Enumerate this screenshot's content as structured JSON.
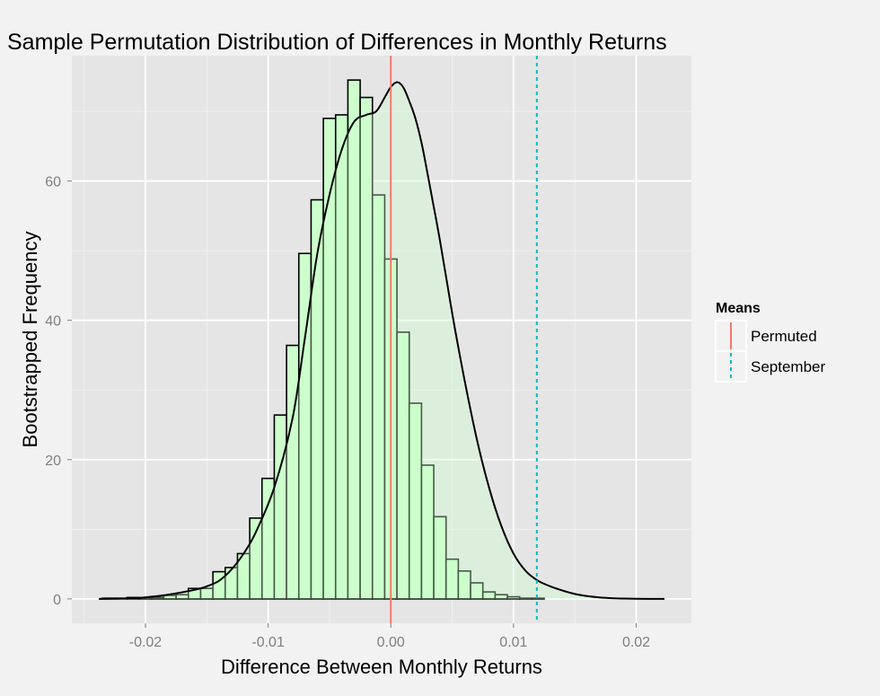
{
  "chart_data": {
    "type": "bar",
    "title": "Sample Permutation Distribution of Differences in Monthly Returns",
    "xlabel": "Difference Between Monthly Returns",
    "ylabel": "Bootstrapped Frequency",
    "xlim": [
      -0.026,
      0.0245
    ],
    "ylim": [
      -3.5,
      78
    ],
    "x_ticks": [
      {
        "value": -0.02,
        "label": "-0.02"
      },
      {
        "value": -0.01,
        "label": "-0.01"
      },
      {
        "value": 0.0,
        "label": "0.00"
      },
      {
        "value": 0.01,
        "label": "0.01"
      },
      {
        "value": 0.02,
        "label": "0.02"
      }
    ],
    "y_ticks": [
      {
        "value": 0,
        "label": "0"
      },
      {
        "value": 20,
        "label": "20"
      },
      {
        "value": 40,
        "label": "40"
      },
      {
        "value": 60,
        "label": "60"
      }
    ],
    "grid": true,
    "histogram": {
      "bin_width": 0.001,
      "bins": [
        {
          "x0": -0.0235,
          "x1": -0.0225,
          "count": 0.1
        },
        {
          "x0": -0.0225,
          "x1": -0.0215,
          "count": 0.1
        },
        {
          "x0": -0.0215,
          "x1": -0.0205,
          "count": 0.2
        },
        {
          "x0": -0.0205,
          "x1": -0.0195,
          "count": 0.1
        },
        {
          "x0": -0.0195,
          "x1": -0.0185,
          "count": 0.2
        },
        {
          "x0": -0.0185,
          "x1": -0.0175,
          "count": 0.5
        },
        {
          "x0": -0.0175,
          "x1": -0.0165,
          "count": 0.6
        },
        {
          "x0": -0.0165,
          "x1": -0.0155,
          "count": 1.5
        },
        {
          "x0": -0.0155,
          "x1": -0.0145,
          "count": 1.5
        },
        {
          "x0": -0.0145,
          "x1": -0.0135,
          "count": 3.9
        },
        {
          "x0": -0.0135,
          "x1": -0.0125,
          "count": 4.5
        },
        {
          "x0": -0.0125,
          "x1": -0.0115,
          "count": 6.5
        },
        {
          "x0": -0.0115,
          "x1": -0.0105,
          "count": 11.6
        },
        {
          "x0": -0.0105,
          "x1": -0.0095,
          "count": 17.3
        },
        {
          "x0": -0.0095,
          "x1": -0.0085,
          "count": 26.4
        },
        {
          "x0": -0.0085,
          "x1": -0.0075,
          "count": 36.4
        },
        {
          "x0": -0.0075,
          "x1": -0.0065,
          "count": 49.6
        },
        {
          "x0": -0.0065,
          "x1": -0.0055,
          "count": 57.3
        },
        {
          "x0": -0.0055,
          "x1": -0.0045,
          "count": 69.0
        },
        {
          "x0": -0.0045,
          "x1": -0.0035,
          "count": 69.5
        },
        {
          "x0": -0.0035,
          "x1": -0.0025,
          "count": 74.5
        },
        {
          "x0": -0.0025,
          "x1": -0.0015,
          "count": 72.0
        },
        {
          "x0": -0.0015,
          "x1": -0.0005,
          "count": 58.0
        },
        {
          "x0": -0.0005,
          "x1": 0.0005,
          "count": 48.8
        },
        {
          "x0": 0.0005,
          "x1": 0.0015,
          "count": 38.3
        },
        {
          "x0": 0.0015,
          "x1": 0.0025,
          "count": 28.1
        },
        {
          "x0": 0.0025,
          "x1": 0.0035,
          "count": 19.2
        },
        {
          "x0": 0.0035,
          "x1": 0.0045,
          "count": 11.8
        },
        {
          "x0": 0.0045,
          "x1": 0.0055,
          "count": 5.7
        },
        {
          "x0": 0.0055,
          "x1": 0.0065,
          "count": 4.0
        },
        {
          "x0": 0.0065,
          "x1": 0.0075,
          "count": 2.3
        },
        {
          "x0": 0.0075,
          "x1": 0.0085,
          "count": 1.0
        },
        {
          "x0": 0.0085,
          "x1": 0.0095,
          "count": 0.6
        },
        {
          "x0": 0.0095,
          "x1": 0.0105,
          "count": 0.3
        },
        {
          "x0": 0.0105,
          "x1": 0.0115,
          "count": 0.1
        },
        {
          "x0": 0.0115,
          "x1": 0.0125,
          "count": 0.1
        }
      ]
    },
    "density_curve": {
      "x": [
        -0.0238,
        -0.021,
        -0.019,
        -0.0175,
        -0.016,
        -0.015,
        -0.014,
        -0.013,
        -0.012,
        -0.011,
        -0.0095,
        -0.008,
        -0.007,
        -0.006,
        -0.005,
        -0.004,
        -0.003,
        -0.002,
        -0.0012,
        -0.0005,
        0.0,
        0.0005,
        0.001,
        0.0015,
        0.002,
        0.0025,
        0.003,
        0.004,
        0.005,
        0.006,
        0.007,
        0.008,
        0.009,
        0.01,
        0.011,
        0.012,
        0.013,
        0.014,
        0.015,
        0.016,
        0.017,
        0.018,
        0.019,
        0.021,
        0.0223
      ],
      "y": [
        0,
        0.1,
        0.4,
        0.8,
        1.3,
        1.8,
        2.6,
        4.2,
        6.5,
        9.6,
        16.0,
        26.0,
        37.5,
        49.5,
        58.0,
        64.5,
        68.5,
        69.5,
        70.0,
        72.0,
        73.5,
        74.2,
        73.5,
        71.5,
        69.0,
        65.5,
        61.0,
        51.5,
        41.0,
        31.5,
        23.0,
        16.0,
        10.5,
        6.5,
        4.0,
        2.6,
        1.8,
        1.2,
        0.7,
        0.4,
        0.2,
        0.1,
        0.05,
        0.0,
        0
      ]
    },
    "vlines": [
      {
        "name": "Permuted",
        "x": 0.0,
        "color": "#f8766d",
        "linetype": "solid"
      },
      {
        "name": "September",
        "x": 0.0119,
        "color": "#00bfc4",
        "linetype": "dashed"
      }
    ],
    "legend": {
      "title": "Means",
      "position": "right",
      "entries": [
        {
          "label": "Permuted",
          "color": "#f8766d",
          "linetype": "solid"
        },
        {
          "label": "September",
          "color": "#00bfc4",
          "linetype": "dashed"
        }
      ]
    },
    "colors": {
      "panel_background": "#e5e5e5",
      "grid": "#ffffff",
      "bar_fill": "#ccffcc",
      "bar_outline": "#000000",
      "page_background": "#f2f2f2"
    }
  }
}
